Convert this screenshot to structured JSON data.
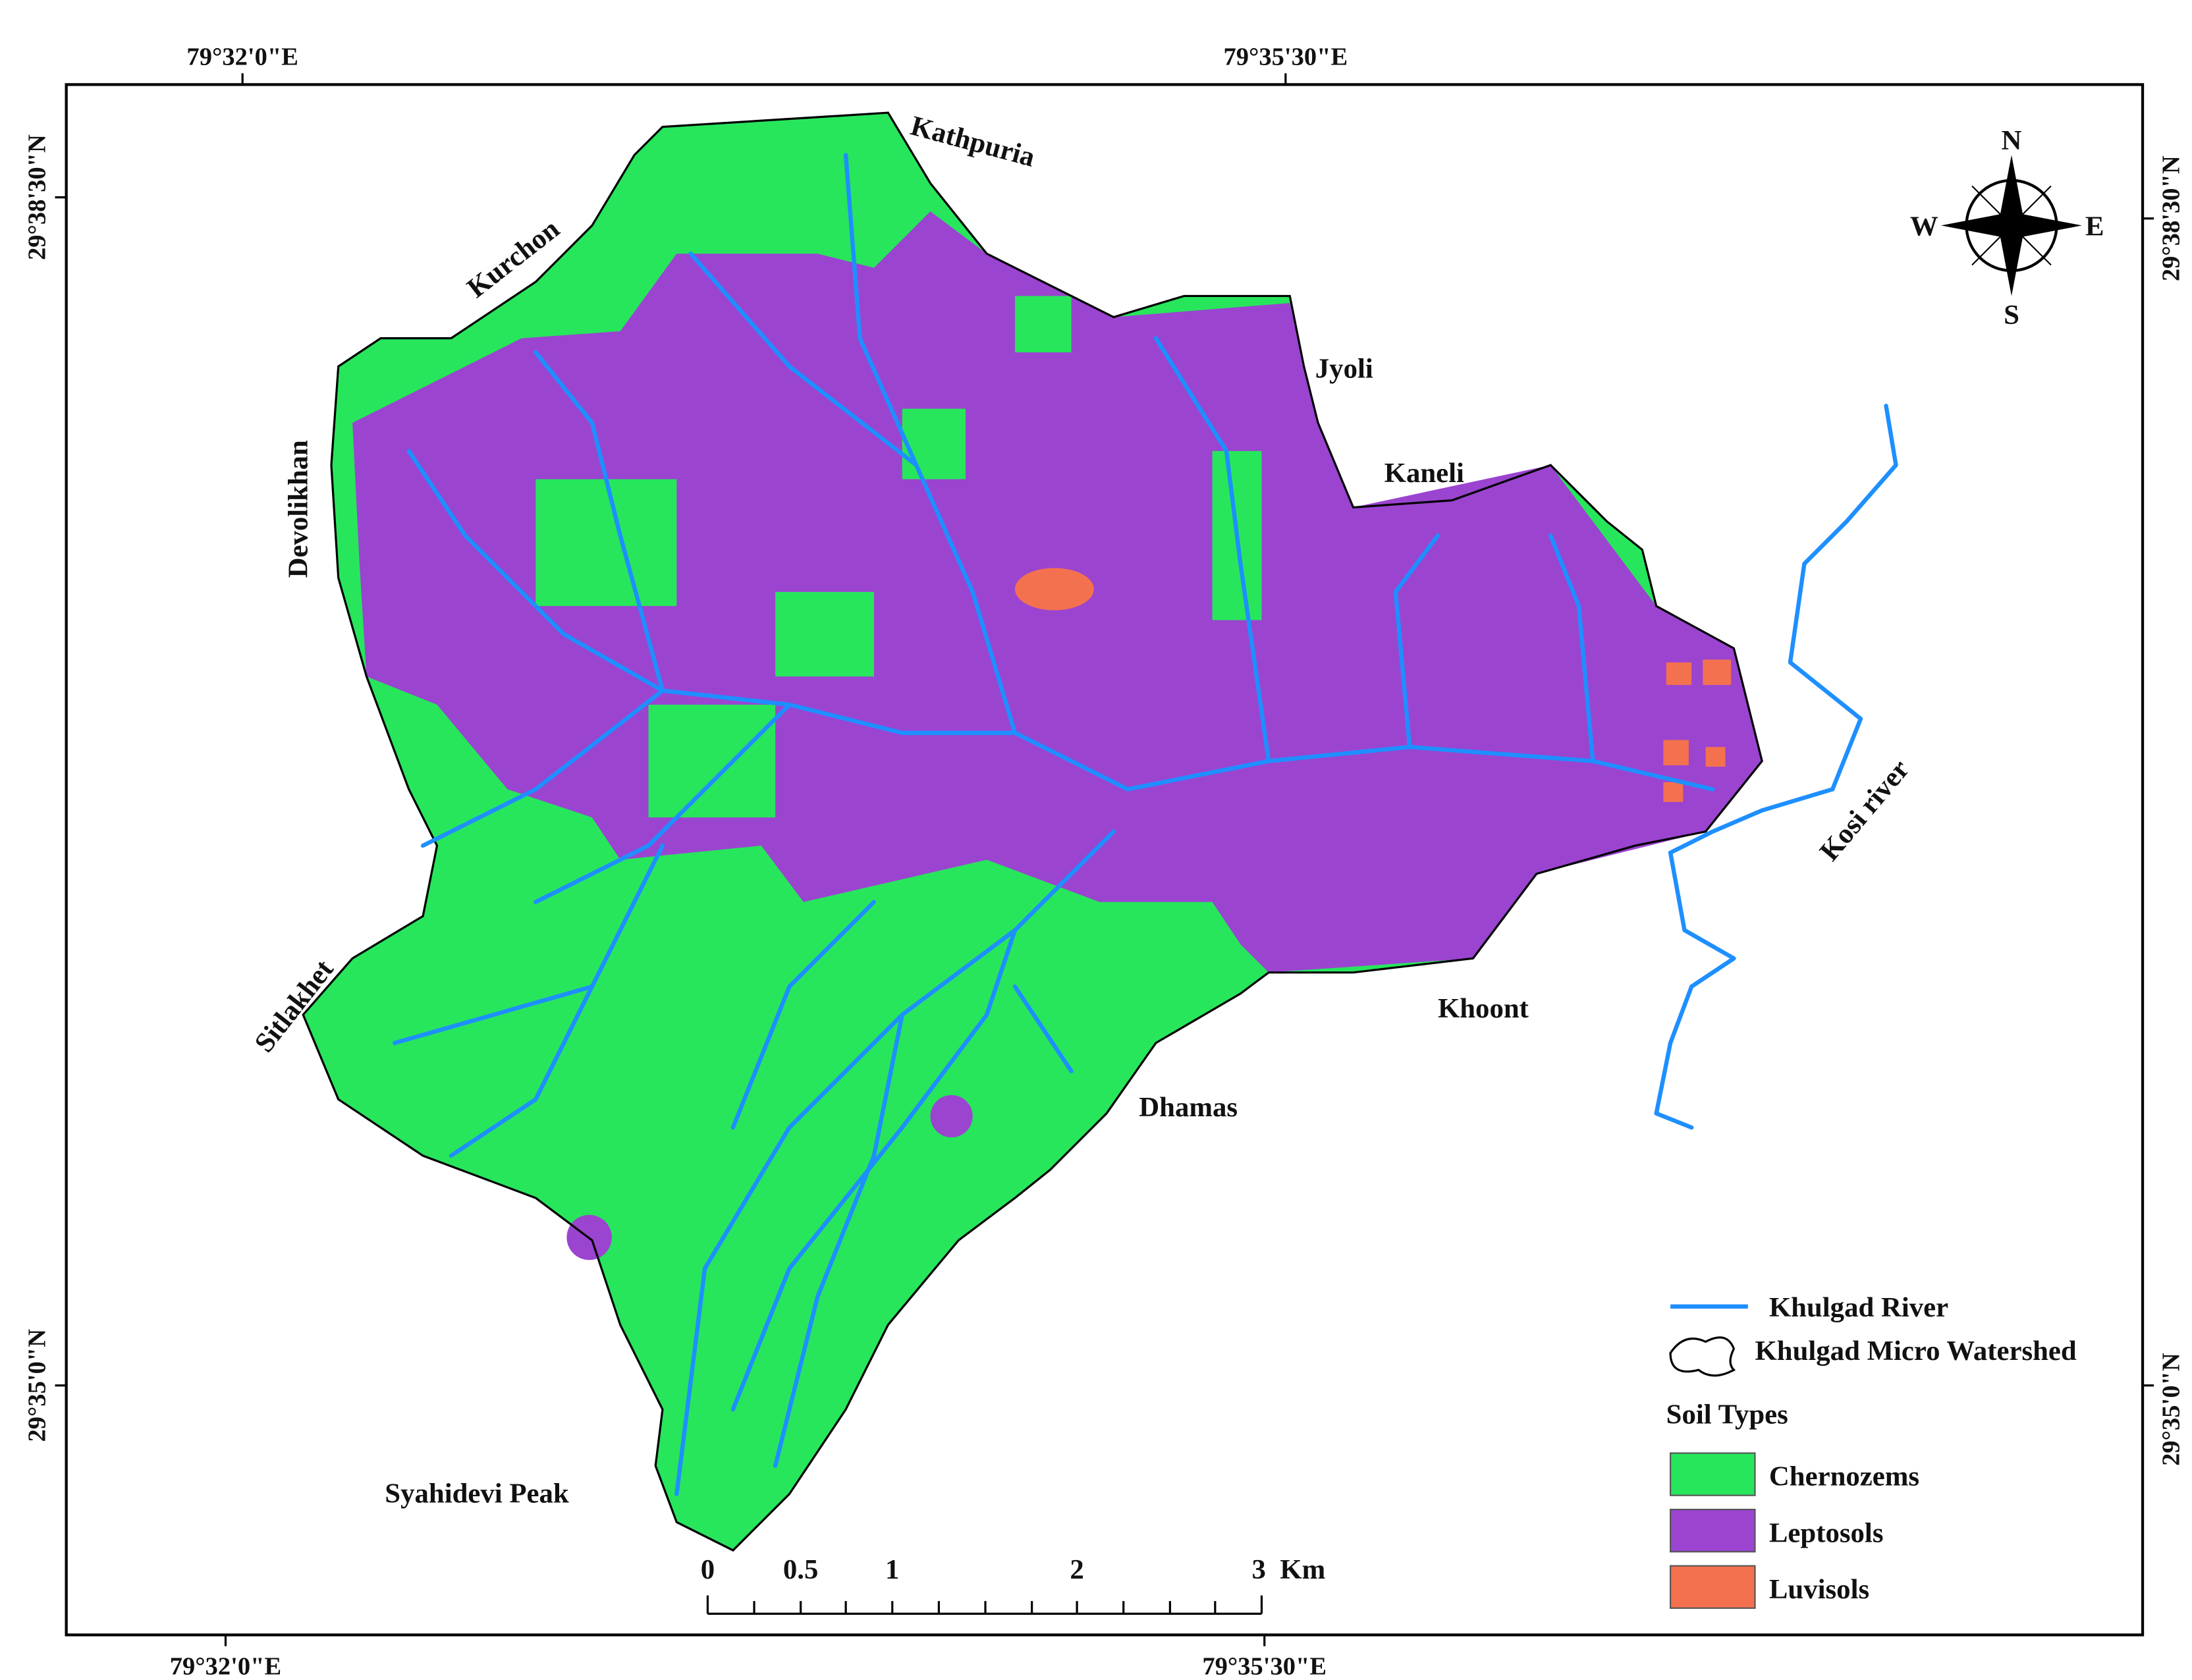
{
  "graticule": {
    "top": [
      "79°32'0\"E",
      "79°35'30\"E"
    ],
    "bottom": [
      "79°32'0\"E",
      "79°35'30\"E"
    ],
    "left": [
      "29°38'30\"N",
      "29°35'0\"N"
    ],
    "right": [
      "29°38'30\"N",
      "29°35'0\"N"
    ]
  },
  "places": [
    "Kathpuria",
    "Kurchon",
    "Devolikhan",
    "Jyoli",
    "Kaneli",
    "Sitlakhet",
    "Khoont",
    "Dhamas",
    "Syahidevi Peak",
    "Kosi river"
  ],
  "compass": {
    "n": "N",
    "e": "E",
    "s": "S",
    "w": "W"
  },
  "legend": {
    "river": "Khulgad River",
    "watershed": "Khulgad Micro Watershed",
    "title": "Soil Types",
    "items": [
      "Chernozems",
      "Leptosols",
      "Luvisols"
    ]
  },
  "scale": {
    "labels": [
      "0",
      "0.5",
      "1",
      "2",
      "3"
    ],
    "unit": "Km"
  }
}
